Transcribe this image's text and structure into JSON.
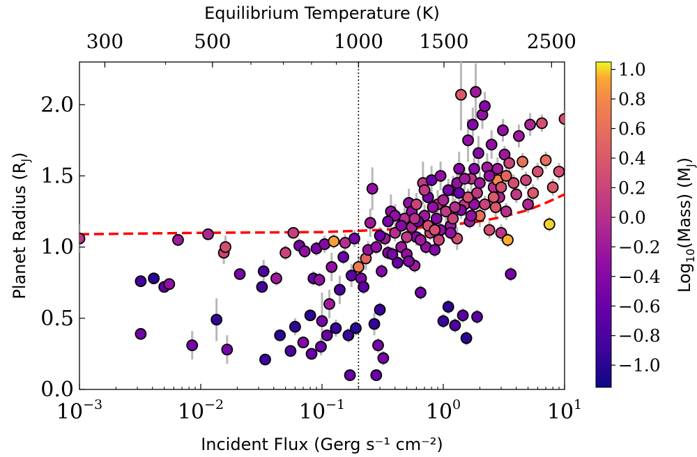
{
  "chart_data": {
    "type": "scatter",
    "xscale": "log",
    "xlim": [
      0.001,
      10
    ],
    "ylim": [
      0.0,
      2.3
    ],
    "xlabel": "Incident Flux (Gerg s⁻¹ cm⁻²)",
    "ylabel": "Planet Radius (R",
    "ylabel_sub": "J",
    "ylabel_end": ")",
    "x_ticks": [
      {
        "value": 0.001,
        "base": "10",
        "exp": "−3"
      },
      {
        "value": 0.01,
        "base": "10",
        "exp": "−2"
      },
      {
        "value": 0.1,
        "base": "10",
        "exp": "−1"
      },
      {
        "value": 1,
        "base": "10",
        "exp": "0"
      },
      {
        "value": 10,
        "base": "10",
        "exp": "1"
      }
    ],
    "y_ticks": [
      {
        "value": 0.0,
        "label": "0.0"
      },
      {
        "value": 0.5,
        "label": "0.5"
      },
      {
        "value": 1.0,
        "label": "1.0"
      },
      {
        "value": 1.5,
        "label": "1.5"
      },
      {
        "value": 2.0,
        "label": "2.0"
      }
    ],
    "top_axis": {
      "label": "Equilibrium Temperature (K)",
      "ticks": [
        {
          "temp": 300,
          "label": "300"
        },
        {
          "temp": 500,
          "label": "500"
        },
        {
          "temp": 1000,
          "label": "1000"
        },
        {
          "temp": 1500,
          "label": "1500"
        },
        {
          "temp": 2500,
          "label": "2500"
        }
      ]
    },
    "vline_flux": 0.2,
    "colorbar": {
      "label": "Log",
      "label_sub": "10",
      "label_mid": "(Mass) (M",
      "label_sub2": "J",
      "label_end": ")",
      "cmap": "plasma",
      "range": [
        -1.15,
        1.05
      ],
      "ticks": [
        {
          "value": 1.0,
          "label": "1.0"
        },
        {
          "value": 0.8,
          "label": "0.8"
        },
        {
          "value": 0.6,
          "label": "0.6"
        },
        {
          "value": 0.4,
          "label": "0.4"
        },
        {
          "value": 0.2,
          "label": "0.2"
        },
        {
          "value": 0.0,
          "label": "0.0"
        },
        {
          "value": -0.2,
          "label": "−0.2"
        },
        {
          "value": -0.4,
          "label": "−0.4"
        },
        {
          "value": -0.6,
          "label": "−0.6"
        },
        {
          "value": -0.8,
          "label": "−0.8"
        },
        {
          "value": -1.0,
          "label": "−1.0"
        }
      ]
    },
    "model_curve": {
      "color": "#ff0000",
      "style": "dashed",
      "points": [
        [
          0.001,
          1.09
        ],
        [
          0.01,
          1.1
        ],
        [
          0.1,
          1.105
        ],
        [
          0.3,
          1.12
        ],
        [
          0.5,
          1.13
        ],
        [
          1,
          1.15
        ],
        [
          2,
          1.18
        ],
        [
          3,
          1.21
        ],
        [
          5,
          1.26
        ],
        [
          7,
          1.31
        ],
        [
          10,
          1.37
        ]
      ]
    },
    "points": [
      [
        0.001,
        1.06,
        0.05,
        0.1
      ],
      [
        0.0032,
        0.76,
        -0.85,
        0.04
      ],
      [
        0.0032,
        0.39,
        -0.55,
        0.04
      ],
      [
        0.0041,
        0.78,
        -1.0,
        0.04
      ],
      [
        0.005,
        0.72,
        -0.7,
        0.04
      ],
      [
        0.0055,
        0.74,
        -0.3,
        0.04
      ],
      [
        0.0065,
        1.05,
        -0.2,
        0.04
      ],
      [
        0.0085,
        0.31,
        -0.5,
        0.1
      ],
      [
        0.0115,
        1.09,
        -0.1,
        0.04
      ],
      [
        0.0135,
        0.49,
        -0.95,
        0.15
      ],
      [
        0.0155,
        0.96,
        0.2,
        0.08
      ],
      [
        0.016,
        1.0,
        0.3,
        0.08
      ],
      [
        0.0165,
        0.28,
        -0.5,
        0.1
      ],
      [
        0.021,
        0.81,
        -0.5,
        0.04
      ],
      [
        0.032,
        0.72,
        -0.85,
        0.04
      ],
      [
        0.033,
        0.83,
        -0.8,
        0.08
      ],
      [
        0.034,
        0.21,
        -0.9,
        0.04
      ],
      [
        0.042,
        0.78,
        -0.2,
        0.05
      ],
      [
        0.045,
        0.38,
        -1.0,
        0.04
      ],
      [
        0.05,
        0.96,
        0.2,
        0.05
      ],
      [
        0.055,
        0.27,
        -0.8,
        0.04
      ],
      [
        0.058,
        1.1,
        0.15,
        0.04
      ],
      [
        0.06,
        0.44,
        -0.95,
        0.06
      ],
      [
        0.065,
        1.01,
        -0.5,
        0.05
      ],
      [
        0.07,
        0.33,
        -0.4,
        0.04
      ],
      [
        0.072,
        0.97,
        -0.3,
        0.05
      ],
      [
        0.08,
        0.52,
        -1.0,
        0.04
      ],
      [
        0.082,
        0.25,
        -0.6,
        0.04
      ],
      [
        0.085,
        0.78,
        -0.6,
        0.05
      ],
      [
        0.09,
        0.99,
        -0.5,
        0.05
      ],
      [
        0.095,
        0.77,
        -0.3,
        0.05
      ],
      [
        0.098,
        0.3,
        -0.6,
        0.06
      ],
      [
        0.1,
        0.48,
        -0.5,
        0.2
      ],
      [
        0.105,
        1.02,
        -0.4,
        0.06
      ],
      [
        0.11,
        0.38,
        -0.6,
        0.04
      ],
      [
        0.115,
        0.6,
        -0.2,
        0.1
      ],
      [
        0.12,
        0.86,
        -0.3,
        0.1
      ],
      [
        0.125,
        1.04,
        0.9,
        0.05
      ],
      [
        0.13,
        0.43,
        -0.9,
        0.06
      ],
      [
        0.14,
        0.7,
        -0.8,
        0.1
      ],
      [
        0.15,
        0.93,
        -0.6,
        0.05
      ],
      [
        0.155,
        1.03,
        0.0,
        0.06
      ],
      [
        0.165,
        0.38,
        -0.9,
        0.05
      ],
      [
        0.17,
        0.1,
        -0.6,
        0.04
      ],
      [
        0.175,
        0.8,
        -0.7,
        0.08
      ],
      [
        0.185,
        1.06,
        -0.5,
        0.06
      ],
      [
        0.19,
        0.43,
        -1.0,
        0.05
      ],
      [
        0.2,
        0.86,
        0.7,
        0.08
      ],
      [
        0.21,
        0.78,
        -0.45,
        0.05
      ],
      [
        0.22,
        0.72,
        -0.7,
        0.05
      ],
      [
        0.23,
        0.92,
        0.5,
        0.08
      ],
      [
        0.24,
        0.98,
        -0.3,
        0.06
      ],
      [
        0.25,
        1.17,
        -0.2,
        0.1
      ],
      [
        0.26,
        1.41,
        -0.3,
        0.15
      ],
      [
        0.27,
        0.46,
        -0.95,
        0.08
      ],
      [
        0.28,
        0.1,
        -0.6,
        0.04
      ],
      [
        0.29,
        0.31,
        -0.5,
        0.05
      ],
      [
        0.3,
        0.56,
        -0.9,
        0.05
      ],
      [
        0.31,
        0.83,
        -0.4,
        0.05
      ],
      [
        0.32,
        0.22,
        -0.5,
        0.05
      ],
      [
        0.33,
        1.06,
        -0.2,
        0.05
      ],
      [
        0.35,
        0.96,
        -0.4,
        0.05
      ],
      [
        0.37,
        1.25,
        -0.3,
        0.12
      ],
      [
        0.4,
        1.1,
        0.0,
        0.06
      ],
      [
        0.42,
        0.89,
        -0.6,
        0.05
      ],
      [
        0.45,
        1.0,
        -0.2,
        0.05
      ],
      [
        0.48,
        1.2,
        0.0,
        0.08
      ],
      [
        0.5,
        0.95,
        -0.3,
        0.05
      ],
      [
        0.52,
        1.31,
        -0.3,
        0.1
      ],
      [
        0.55,
        1.14,
        -0.1,
        0.06
      ],
      [
        0.58,
        0.87,
        -0.2,
        0.05
      ],
      [
        0.6,
        1.07,
        -0.4,
        0.06
      ],
      [
        0.65,
        0.68,
        -0.5,
        0.05
      ],
      [
        0.68,
        1.45,
        0.1,
        0.15
      ],
      [
        0.7,
        1.22,
        -0.2,
        0.08
      ],
      [
        0.72,
        1.0,
        -0.3,
        0.05
      ],
      [
        0.75,
        1.35,
        -0.5,
        0.12
      ],
      [
        0.78,
        1.1,
        0.2,
        0.05
      ],
      [
        0.8,
        1.47,
        -0.6,
        0.1
      ],
      [
        0.85,
        0.98,
        -0.4,
        0.05
      ],
      [
        0.9,
        1.3,
        0.0,
        0.1
      ],
      [
        0.95,
        1.12,
        -0.3,
        0.06
      ],
      [
        1.0,
        0.48,
        -0.9,
        0.05
      ],
      [
        1.05,
        1.25,
        0.1,
        0.1
      ],
      [
        1.1,
        0.58,
        -1.0,
        0.05
      ],
      [
        1.15,
        1.15,
        -0.2,
        0.06
      ],
      [
        1.2,
        1.4,
        -0.3,
        0.1
      ],
      [
        1.25,
        0.45,
        -0.8,
        0.05
      ],
      [
        1.3,
        1.06,
        0.3,
        0.08
      ],
      [
        1.35,
        1.55,
        -0.4,
        0.12
      ],
      [
        1.4,
        2.07,
        0.4,
        0.25
      ],
      [
        1.45,
        0.52,
        -0.7,
        0.05
      ],
      [
        1.5,
        1.3,
        0.1,
        0.08
      ],
      [
        1.55,
        0.36,
        -1.0,
        0.05
      ],
      [
        1.6,
        1.75,
        -0.3,
        0.15
      ],
      [
        1.65,
        1.18,
        -0.2,
        0.05
      ],
      [
        1.7,
        1.48,
        0.05,
        0.1
      ],
      [
        1.75,
        1.86,
        -0.4,
        0.12
      ],
      [
        1.8,
        1.3,
        -0.3,
        0.08
      ],
      [
        1.85,
        2.09,
        -0.2,
        0.2
      ],
      [
        1.9,
        0.51,
        -0.7,
        0.05
      ],
      [
        1.95,
        1.66,
        -0.4,
        0.12
      ],
      [
        2.0,
        1.22,
        0.6,
        0.08
      ],
      [
        2.1,
        1.93,
        -0.3,
        0.1
      ],
      [
        2.2,
        1.99,
        -0.4,
        0.1
      ],
      [
        2.3,
        1.56,
        -0.2,
        0.1
      ],
      [
        2.4,
        1.12,
        0.3,
        0.06
      ],
      [
        2.5,
        1.72,
        -0.3,
        0.1
      ],
      [
        2.6,
        1.42,
        0.0,
        0.08
      ],
      [
        2.7,
        1.28,
        0.4,
        0.08
      ],
      [
        2.8,
        1.47,
        0.8,
        0.08
      ],
      [
        2.9,
        1.35,
        -0.1,
        0.08
      ],
      [
        3.0,
        1.1,
        0.05,
        0.06
      ],
      [
        3.1,
        1.82,
        -0.3,
        0.08
      ],
      [
        3.2,
        1.65,
        -0.2,
        0.06
      ],
      [
        3.3,
        1.25,
        0.0,
        0.06
      ],
      [
        3.4,
        1.05,
        0.95,
        0.05
      ],
      [
        3.5,
        1.59,
        0.2,
        0.08
      ],
      [
        3.6,
        0.81,
        -0.5,
        0.05
      ],
      [
        3.8,
        1.45,
        0.3,
        0.06
      ],
      [
        4.0,
        1.37,
        0.1,
        0.06
      ],
      [
        4.2,
        1.78,
        -0.2,
        0.08
      ],
      [
        4.5,
        1.6,
        0.6,
        0.06
      ],
      [
        4.8,
        1.47,
        0.2,
        0.06
      ],
      [
        5.0,
        1.3,
        -0.1,
        0.06
      ],
      [
        5.2,
        1.86,
        -0.1,
        0.08
      ],
      [
        5.5,
        1.38,
        0.4,
        0.06
      ],
      [
        6.0,
        1.53,
        0.3,
        0.06
      ],
      [
        6.5,
        1.87,
        0.3,
        0.06
      ],
      [
        7.0,
        1.61,
        0.6,
        0.06
      ],
      [
        7.5,
        1.16,
        1.0,
        0.05
      ],
      [
        8.0,
        1.42,
        0.4,
        0.06
      ],
      [
        9.0,
        1.53,
        0.3,
        0.06
      ],
      [
        10.0,
        1.9,
        0.3,
        0.06
      ],
      [
        0.55,
        1.25,
        -0.3,
        0.08
      ],
      [
        0.6,
        1.3,
        0.2,
        0.08
      ],
      [
        0.62,
        1.18,
        -0.5,
        0.06
      ],
      [
        0.7,
        1.4,
        0.1,
        0.08
      ],
      [
        0.75,
        1.15,
        0.3,
        0.06
      ],
      [
        0.82,
        1.28,
        -0.3,
        0.08
      ],
      [
        0.88,
        1.2,
        -0.4,
        0.06
      ],
      [
        0.92,
        1.05,
        0.2,
        0.05
      ],
      [
        1.0,
        1.33,
        -0.1,
        0.08
      ],
      [
        1.1,
        1.4,
        -0.5,
        0.08
      ],
      [
        1.2,
        1.2,
        0.2,
        0.06
      ],
      [
        1.3,
        1.45,
        -0.3,
        0.08
      ],
      [
        1.4,
        1.26,
        -0.4,
        0.06
      ],
      [
        1.5,
        1.48,
        -0.2,
        0.08
      ],
      [
        1.6,
        1.35,
        0.3,
        0.06
      ],
      [
        1.7,
        1.22,
        -0.3,
        0.06
      ],
      [
        1.8,
        1.55,
        -0.4,
        0.08
      ],
      [
        1.9,
        1.38,
        0.1,
        0.06
      ],
      [
        2.0,
        1.45,
        -0.2,
        0.08
      ],
      [
        2.2,
        1.3,
        0.2,
        0.06
      ],
      [
        2.4,
        1.5,
        -0.3,
        0.08
      ],
      [
        2.6,
        1.35,
        0.4,
        0.06
      ],
      [
        2.8,
        1.55,
        -0.2,
        0.08
      ],
      [
        3.0,
        1.42,
        0.3,
        0.06
      ],
      [
        3.3,
        1.5,
        0.5,
        0.06
      ],
      [
        0.45,
        1.15,
        -0.4,
        0.06
      ],
      [
        0.5,
        1.07,
        0.1,
        0.05
      ],
      [
        0.4,
        1.22,
        -0.3,
        0.08
      ],
      [
        0.35,
        1.18,
        -0.5,
        0.06
      ],
      [
        0.3,
        1.08,
        -0.6,
        0.06
      ],
      [
        0.65,
        1.05,
        -0.2,
        0.05
      ],
      [
        0.85,
        1.12,
        0.3,
        0.05
      ],
      [
        1.15,
        1.1,
        -0.3,
        0.05
      ],
      [
        1.25,
        1.28,
        0.0,
        0.06
      ],
      [
        1.35,
        1.38,
        -0.6,
        0.08
      ],
      [
        0.28,
        1.0,
        -0.3,
        0.05
      ],
      [
        0.38,
        0.95,
        -0.5,
        0.05
      ],
      [
        0.52,
        0.9,
        -0.4,
        0.05
      ],
      [
        0.58,
        1.2,
        0.0,
        0.06
      ],
      [
        0.95,
        1.5,
        -0.3,
        0.1
      ]
    ]
  }
}
